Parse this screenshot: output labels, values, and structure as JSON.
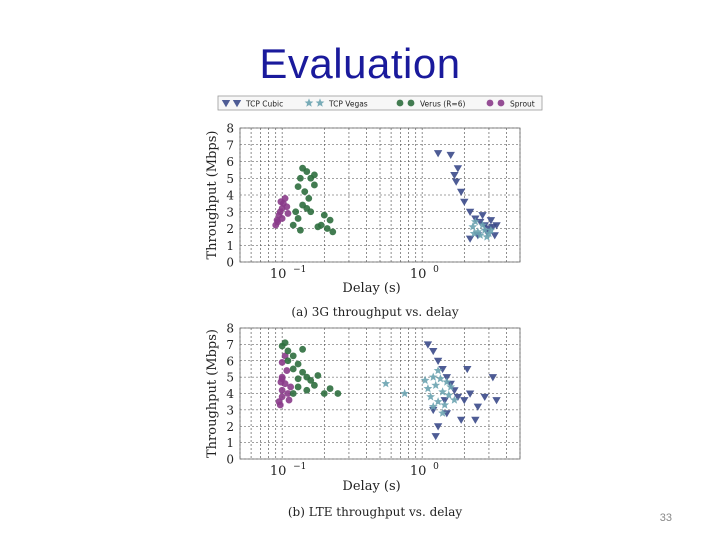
{
  "slide": {
    "title": "Evaluation",
    "number": "33"
  },
  "colors": {
    "title": "#1a1a9c",
    "tcp_cubic": "#3b4a8a",
    "tcp_vegas": "#6aa3b0",
    "verus": "#2e6e3e",
    "sprout": "#8a3b8a"
  },
  "chart_data": [
    {
      "type": "scatter",
      "title": "(a) 3G throughput vs. delay",
      "xlabel": "Delay (s)",
      "ylabel": "Throughput (Mbps)",
      "xscale": "log",
      "xlim": [
        0.05,
        5.0
      ],
      "ylim": [
        0,
        8
      ],
      "xticks": [
        {
          "value": 0.1,
          "label": "10",
          "exp": "−1"
        },
        {
          "value": 1.0,
          "label": "10",
          "exp": "0"
        }
      ],
      "yticks": [
        0,
        1,
        2,
        3,
        4,
        5,
        6,
        7,
        8
      ],
      "grid": true,
      "legend": {
        "position": "top",
        "entries": [
          {
            "name": "TCP Cubic",
            "marker": "triangle-down",
            "color": "#3b4a8a"
          },
          {
            "name": "TCP Vegas",
            "marker": "star",
            "color": "#6aa3b0"
          },
          {
            "name": "Verus (R=6)",
            "marker": "circle",
            "color": "#2e6e3e"
          },
          {
            "name": "Sprout",
            "marker": "circle",
            "color": "#8a3b8a"
          }
        ]
      },
      "series": [
        {
          "name": "Sprout",
          "marker": "circle",
          "color": "#8a3b8a",
          "points": [
            [
              0.09,
              2.2
            ],
            [
              0.092,
              2.5
            ],
            [
              0.095,
              2.8
            ],
            [
              0.097,
              3.0
            ],
            [
              0.1,
              3.2
            ],
            [
              0.1,
              2.6
            ],
            [
              0.102,
              3.5
            ],
            [
              0.105,
              3.8
            ],
            [
              0.108,
              3.3
            ],
            [
              0.11,
              2.9
            ],
            [
              0.093,
              2.4
            ],
            [
              0.098,
              3.6
            ]
          ]
        },
        {
          "name": "Verus (R=6)",
          "marker": "circle",
          "color": "#2e6e3e",
          "points": [
            [
              0.13,
              4.5
            ],
            [
              0.135,
              5.0
            ],
            [
              0.14,
              5.6
            ],
            [
              0.15,
              5.4
            ],
            [
              0.16,
              5.0
            ],
            [
              0.17,
              4.6
            ],
            [
              0.145,
              4.2
            ],
            [
              0.155,
              3.8
            ],
            [
              0.14,
              3.4
            ],
            [
              0.15,
              3.2
            ],
            [
              0.16,
              3.0
            ],
            [
              0.13,
              2.6
            ],
            [
              0.2,
              2.8
            ],
            [
              0.22,
              2.5
            ],
            [
              0.21,
              2.0
            ],
            [
              0.23,
              1.8
            ],
            [
              0.18,
              2.1
            ],
            [
              0.12,
              2.2
            ],
            [
              0.125,
              3.0
            ],
            [
              0.17,
              5.2
            ],
            [
              0.19,
              2.2
            ],
            [
              0.135,
              1.9
            ]
          ]
        },
        {
          "name": "TCP Cubic",
          "marker": "triangle-down",
          "color": "#3b4a8a",
          "points": [
            [
              1.3,
              6.5
            ],
            [
              1.6,
              6.4
            ],
            [
              1.7,
              5.2
            ],
            [
              1.8,
              5.6
            ],
            [
              1.75,
              4.8
            ],
            [
              1.9,
              4.2
            ],
            [
              2.0,
              3.6
            ],
            [
              2.2,
              3.0
            ],
            [
              2.4,
              2.6
            ],
            [
              2.6,
              2.4
            ],
            [
              2.8,
              2.2
            ],
            [
              3.0,
              2.0
            ],
            [
              3.2,
              2.1
            ],
            [
              3.4,
              2.2
            ],
            [
              2.5,
              1.6
            ],
            [
              2.2,
              1.4
            ],
            [
              2.9,
              1.8
            ],
            [
              3.3,
              1.6
            ],
            [
              2.7,
              2.8
            ],
            [
              3.1,
              2.5
            ]
          ]
        },
        {
          "name": "TCP Vegas",
          "marker": "star",
          "color": "#6aa3b0",
          "points": [
            [
              2.3,
              2.1
            ],
            [
              2.5,
              1.8
            ],
            [
              2.6,
              1.6
            ],
            [
              2.8,
              1.9
            ],
            [
              3.0,
              1.7
            ],
            [
              2.4,
              2.4
            ],
            [
              2.7,
              2.2
            ],
            [
              3.1,
              1.9
            ],
            [
              2.9,
              1.5
            ],
            [
              2.35,
              1.7
            ]
          ]
        }
      ]
    },
    {
      "type": "scatter",
      "title": "(b) LTE throughput vs. delay",
      "xlabel": "Delay (s)",
      "ylabel": "Throughput (Mbps)",
      "xscale": "log",
      "xlim": [
        0.05,
        5.0
      ],
      "ylim": [
        0,
        8
      ],
      "xticks": [
        {
          "value": 0.1,
          "label": "10",
          "exp": "−1"
        },
        {
          "value": 1.0,
          "label": "10",
          "exp": "0"
        }
      ],
      "yticks": [
        0,
        1,
        2,
        3,
        4,
        5,
        6,
        7,
        8
      ],
      "grid": true,
      "series": [
        {
          "name": "Sprout",
          "marker": "circle",
          "color": "#8a3b8a",
          "points": [
            [
              0.095,
              3.5
            ],
            [
              0.1,
              3.8
            ],
            [
              0.1,
              4.2
            ],
            [
              0.105,
              4.6
            ],
            [
              0.1,
              5.0
            ],
            [
              0.108,
              5.4
            ],
            [
              0.1,
              4.9
            ],
            [
              0.11,
              4.0
            ],
            [
              0.097,
              3.3
            ],
            [
              0.112,
              3.6
            ],
            [
              0.115,
              4.4
            ],
            [
              0.1,
              5.9
            ],
            [
              0.105,
              6.3
            ],
            [
              0.098,
              4.7
            ]
          ]
        },
        {
          "name": "Verus (R=6)",
          "marker": "circle",
          "color": "#2e6e3e",
          "points": [
            [
              0.1,
              6.9
            ],
            [
              0.105,
              7.1
            ],
            [
              0.11,
              6.6
            ],
            [
              0.12,
              6.3
            ],
            [
              0.13,
              5.8
            ],
            [
              0.14,
              5.3
            ],
            [
              0.15,
              5.0
            ],
            [
              0.16,
              4.8
            ],
            [
              0.17,
              4.5
            ],
            [
              0.12,
              5.5
            ],
            [
              0.13,
              4.9
            ],
            [
              0.11,
              6.0
            ],
            [
              0.15,
              4.2
            ],
            [
              0.2,
              4.0
            ],
            [
              0.22,
              4.3
            ],
            [
              0.25,
              4.0
            ],
            [
              0.14,
              6.7
            ],
            [
              0.18,
              5.1
            ],
            [
              0.13,
              4.4
            ],
            [
              0.12,
              4.0
            ]
          ]
        },
        {
          "name": "TCP Cubic",
          "marker": "triangle-down",
          "color": "#3b4a8a",
          "points": [
            [
              1.1,
              7.0
            ],
            [
              1.2,
              6.6
            ],
            [
              1.3,
              6.0
            ],
            [
              1.4,
              5.5
            ],
            [
              1.5,
              5.0
            ],
            [
              1.6,
              4.6
            ],
            [
              1.7,
              4.2
            ],
            [
              1.8,
              3.8
            ],
            [
              2.0,
              3.6
            ],
            [
              2.2,
              4.0
            ],
            [
              2.5,
              3.2
            ],
            [
              2.8,
              3.8
            ],
            [
              3.2,
              5.0
            ],
            [
              3.4,
              3.6
            ],
            [
              1.3,
              2.0
            ],
            [
              1.25,
              1.4
            ],
            [
              1.5,
              2.8
            ],
            [
              1.9,
              2.4
            ],
            [
              2.4,
              2.4
            ],
            [
              2.1,
              5.5
            ],
            [
              1.2,
              3.0
            ],
            [
              1.45,
              3.6
            ]
          ]
        },
        {
          "name": "TCP Vegas",
          "marker": "star",
          "color": "#6aa3b0",
          "points": [
            [
              0.55,
              4.6
            ],
            [
              0.75,
              4.0
            ],
            [
              1.05,
              4.8
            ],
            [
              1.1,
              4.3
            ],
            [
              1.15,
              3.8
            ],
            [
              1.2,
              5.0
            ],
            [
              1.25,
              4.5
            ],
            [
              1.3,
              3.5
            ],
            [
              1.35,
              4.9
            ],
            [
              1.4,
              4.1
            ],
            [
              1.45,
              3.3
            ],
            [
              1.5,
              4.7
            ],
            [
              1.55,
              3.9
            ],
            [
              1.6,
              4.4
            ],
            [
              1.7,
              3.6
            ],
            [
              1.2,
              3.2
            ],
            [
              1.3,
              5.4
            ],
            [
              1.4,
              2.8
            ]
          ]
        }
      ]
    }
  ]
}
